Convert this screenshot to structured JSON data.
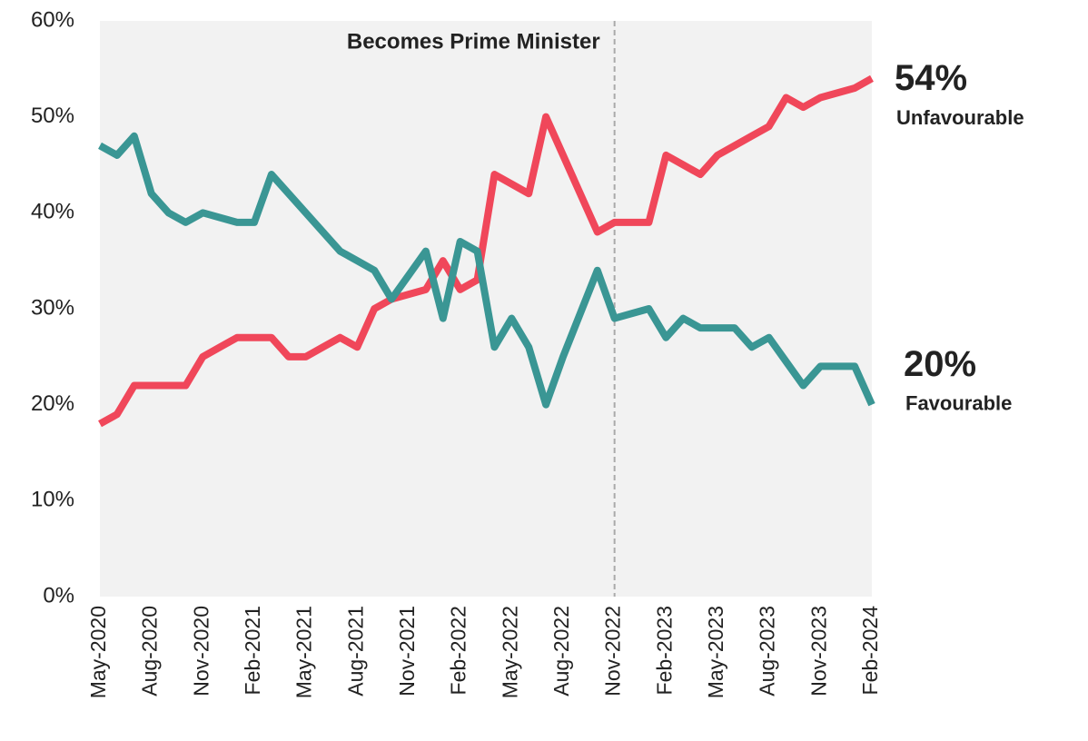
{
  "chart_data": {
    "type": "line",
    "annotation": {
      "text": "Becomes Prime Minister",
      "x": "Nov-2022"
    },
    "categories": [
      "May-2020",
      null,
      null,
      "Aug-2020",
      null,
      null,
      "Nov-2020",
      null,
      null,
      "Feb-2021",
      null,
      null,
      "May-2021",
      null,
      null,
      "Aug-2021",
      null,
      null,
      "Nov-2021",
      null,
      null,
      "Feb-2022",
      null,
      null,
      "May-2022",
      null,
      null,
      "Aug-2022",
      null,
      null,
      "Nov-2022",
      null,
      null,
      "Feb-2023",
      null,
      null,
      "May-2023",
      null,
      null,
      "Aug-2023",
      null,
      null,
      "Nov-2023",
      null,
      null,
      "Feb-2024"
    ],
    "series": [
      {
        "name": "Unfavourable",
        "color": "#f0475a",
        "values": [
          18,
          19,
          22,
          22,
          22,
          22,
          25,
          26,
          27,
          27,
          27,
          25,
          25,
          26,
          27,
          26,
          30,
          31,
          31.5,
          32,
          35,
          32,
          33,
          44,
          43,
          42,
          50,
          46,
          42,
          38,
          39,
          39,
          39,
          46,
          45,
          44,
          46,
          47,
          48,
          49,
          52,
          51,
          52,
          52.5,
          53,
          54
        ],
        "value_labels": [
          null,
          null,
          null,
          null,
          null,
          null,
          null,
          null,
          null,
          null,
          null,
          null,
          null,
          null,
          null,
          null,
          null,
          null,
          null,
          null,
          null,
          null,
          null,
          null,
          null,
          null,
          null,
          null,
          null,
          null,
          null,
          null,
          null,
          null,
          null,
          null,
          null,
          null,
          null,
          null,
          null,
          null,
          null,
          null,
          null,
          "54%"
        ]
      },
      {
        "name": "Favourable",
        "color": "#3a9694",
        "values": [
          47,
          46,
          48,
          42,
          40,
          39,
          40,
          39.5,
          39,
          39,
          44,
          42,
          40,
          38,
          36,
          35,
          34,
          31,
          33.5,
          36,
          29,
          37,
          36,
          26,
          29,
          26,
          20,
          25,
          29.5,
          34,
          29,
          29.5,
          30,
          27,
          29,
          28,
          28,
          28,
          26,
          27,
          24.5,
          22,
          24,
          24,
          24,
          20
        ],
        "value_labels": [
          null,
          null,
          null,
          null,
          null,
          null,
          null,
          null,
          null,
          null,
          null,
          null,
          null,
          null,
          null,
          null,
          null,
          null,
          null,
          null,
          null,
          null,
          null,
          null,
          null,
          null,
          null,
          null,
          null,
          null,
          null,
          null,
          null,
          null,
          null,
          null,
          null,
          null,
          null,
          null,
          null,
          null,
          null,
          null,
          null,
          "20%"
        ]
      }
    ],
    "ylim": [
      0,
      60
    ],
    "yticks": [
      {
        "value": 0,
        "label": "0%"
      },
      {
        "value": 10,
        "label": "10%"
      },
      {
        "value": 20,
        "label": "20%"
      },
      {
        "value": 30,
        "label": "30%"
      },
      {
        "value": 40,
        "label": "40%"
      },
      {
        "value": 50,
        "label": "50%"
      },
      {
        "value": 60,
        "label": "60%"
      }
    ],
    "grid": false
  }
}
